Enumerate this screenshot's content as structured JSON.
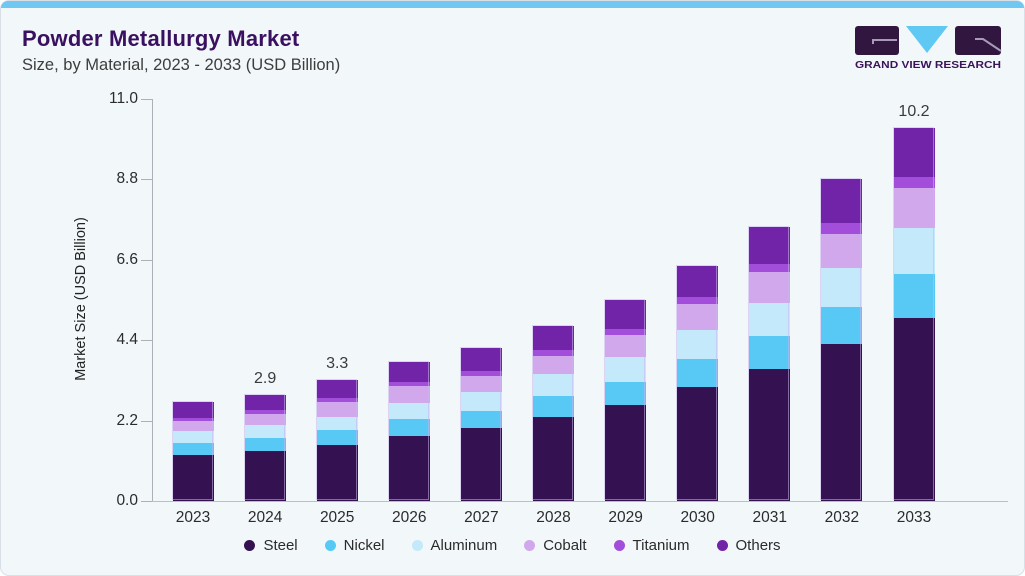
{
  "header": {
    "title": "Powder Metallurgy Market",
    "subtitle": "Size, by Material, 2023 - 2033 (USD Billion)",
    "brand": "GRAND VIEW RESEARCH"
  },
  "colors": {
    "accent_bar": "#70C7F1",
    "card_bg": "#F2F7FA",
    "title_text": "#3A1160",
    "brand_purple": "#3A1358",
    "logo_block": "#311740",
    "logo_v": "#5FC8F3",
    "axis_line": "#ACB0B7"
  },
  "chart_data": {
    "type": "bar",
    "stacked": true,
    "title": "Powder Metallurgy Market Size, by Material, 2023 - 2033 (USD Billion)",
    "categories": [
      "2023",
      "2024",
      "2025",
      "2026",
      "2027",
      "2028",
      "2029",
      "2030",
      "2031",
      "2032",
      "2033"
    ],
    "series": [
      {
        "name": "Steel",
        "color": "#341151",
        "values": [
          1.26,
          1.36,
          1.54,
          1.77,
          1.99,
          2.3,
          2.62,
          3.13,
          3.62,
          4.3,
          5.0
        ]
      },
      {
        "name": "Nickel",
        "color": "#58C9F5",
        "values": [
          0.32,
          0.37,
          0.4,
          0.48,
          0.47,
          0.56,
          0.63,
          0.75,
          0.89,
          1.0,
          1.2
        ]
      },
      {
        "name": "Aluminum",
        "color": "#C3E9FB",
        "values": [
          0.33,
          0.35,
          0.37,
          0.43,
          0.51,
          0.62,
          0.7,
          0.8,
          0.9,
          1.08,
          1.27
        ]
      },
      {
        "name": "Cobalt",
        "color": "#D2A8ED",
        "values": [
          0.27,
          0.31,
          0.41,
          0.46,
          0.46,
          0.48,
          0.58,
          0.71,
          0.86,
          0.93,
          1.09
        ]
      },
      {
        "name": "Titanium",
        "color": "#A34EDB",
        "values": [
          0.08,
          0.09,
          0.09,
          0.12,
          0.14,
          0.17,
          0.17,
          0.18,
          0.21,
          0.29,
          0.31
        ]
      },
      {
        "name": "Others",
        "color": "#7124A8",
        "values": [
          0.44,
          0.42,
          0.49,
          0.54,
          0.63,
          0.67,
          0.8,
          0.87,
          1.02,
          1.2,
          1.33
        ]
      }
    ],
    "totals": [
      2.7,
      2.9,
      3.3,
      3.8,
      4.2,
      4.8,
      5.5,
      6.4,
      7.5,
      8.8,
      10.2
    ],
    "bar_labels": {
      "2024": "2.9",
      "2025": "3.3",
      "2033": "10.2"
    },
    "xlabel": "",
    "ylabel": "Market Size (USD Billion)",
    "yticks": [
      "0.0",
      "2.2",
      "4.4",
      "6.6",
      "8.8",
      "11.0"
    ],
    "ylim": [
      0,
      11.0
    ],
    "grid": false,
    "legend_position": "bottom"
  }
}
